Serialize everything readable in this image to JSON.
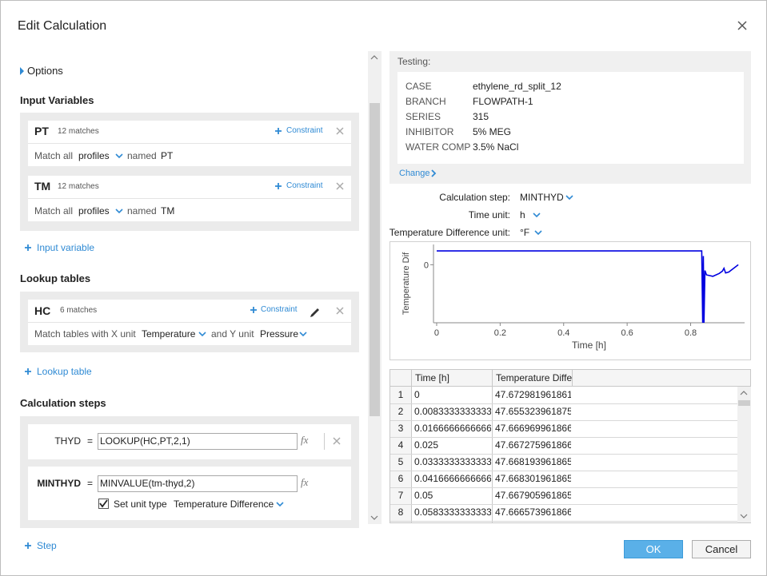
{
  "dialog": {
    "title": "Edit Calculation"
  },
  "options": "Options",
  "input_variables": {
    "heading": "Input Variables",
    "items": [
      {
        "name": "PT",
        "matches": "12 matches",
        "constraint": "Constraint",
        "match_all": "Match all",
        "source": "profiles",
        "named": "named",
        "pattern": "PT"
      },
      {
        "name": "TM",
        "matches": "12 matches",
        "constraint": "Constraint",
        "match_all": "Match all",
        "source": "profiles",
        "named": "named",
        "pattern": "TM"
      }
    ],
    "add": "Input variable"
  },
  "lookup_tables": {
    "heading": "Lookup tables",
    "items": [
      {
        "name": "HC",
        "matches": "6 matches",
        "constraint": "Constraint",
        "x_prefix": "Match tables with X unit",
        "x_unit": "Temperature",
        "y_prefix": "and Y unit",
        "y_unit": "Pressure"
      }
    ],
    "add": "Lookup table"
  },
  "calculation_steps": {
    "heading": "Calculation steps",
    "steps": [
      {
        "name": "THYD",
        "equals": "=",
        "formula": "LOOKUP(HC,PT,2,1)",
        "icon": "fx"
      },
      {
        "name": "MINTHYD",
        "equals": "=",
        "formula": "MINVALUE(tm-thyd,2)",
        "icon": "fx",
        "set_unit": "Set unit type",
        "unit_type": "Temperature Difference"
      }
    ],
    "add": "Step"
  },
  "testing": {
    "label": "Testing:",
    "rows": [
      {
        "key": "CASE",
        "value": "ethylene_rd_split_12"
      },
      {
        "key": "BRANCH",
        "value": "FLOWPATH-1"
      },
      {
        "key": "SERIES",
        "value": "315"
      },
      {
        "key": "INHIBITOR",
        "value": "5% MEG"
      },
      {
        "key": "WATER COMP",
        "value": "3.5% NaCl"
      }
    ],
    "change": "Change"
  },
  "settings": [
    {
      "label": "Calculation step:",
      "value": "MINTHYD"
    },
    {
      "label": "Time unit:",
      "value": "h"
    },
    {
      "label": "Temperature Difference unit:",
      "value": "°F"
    }
  ],
  "plot": {
    "y_label": "Temperature Dif",
    "x_label": "Time [h]",
    "xlim": [
      -0.01,
      0.97
    ],
    "ylim": [
      -200,
      70
    ],
    "xticks": [
      0,
      0.2,
      0.4,
      0.6,
      0.8
    ],
    "yticks": [
      0
    ],
    "color": "#0000e0",
    "x": [
      0,
      0.83,
      0.835,
      0.838,
      0.84,
      0.842,
      0.845,
      0.85,
      0.87,
      0.89,
      0.9,
      0.905,
      0.91,
      0.92,
      0.95
    ],
    "y": [
      47.67,
      47.67,
      47.67,
      -200,
      30,
      -200,
      -20,
      -35,
      -40,
      -30,
      -22,
      -12,
      -28,
      -25,
      0
    ]
  },
  "table": {
    "columns": [
      "Time [h]",
      "Temperature Diffe"
    ],
    "rows": [
      {
        "index": "1",
        "time": "0",
        "value": "47.672981961861"
      },
      {
        "index": "2",
        "time": "0.0083333333333",
        "value": "47.655323961875"
      },
      {
        "index": "3",
        "time": "0.0166666666666",
        "value": "47.666969961866"
      },
      {
        "index": "4",
        "time": "0.025",
        "value": "47.667275961866"
      },
      {
        "index": "5",
        "time": "0.0333333333333",
        "value": "47.668193961865"
      },
      {
        "index": "6",
        "time": "0.0416666666666",
        "value": "47.668301961865"
      },
      {
        "index": "7",
        "time": "0.05",
        "value": "47.667905961865"
      },
      {
        "index": "8",
        "time": "0.0583333333333",
        "value": "47.666573961866"
      }
    ]
  },
  "buttons": {
    "ok": "OK",
    "cancel": "Cancel"
  }
}
